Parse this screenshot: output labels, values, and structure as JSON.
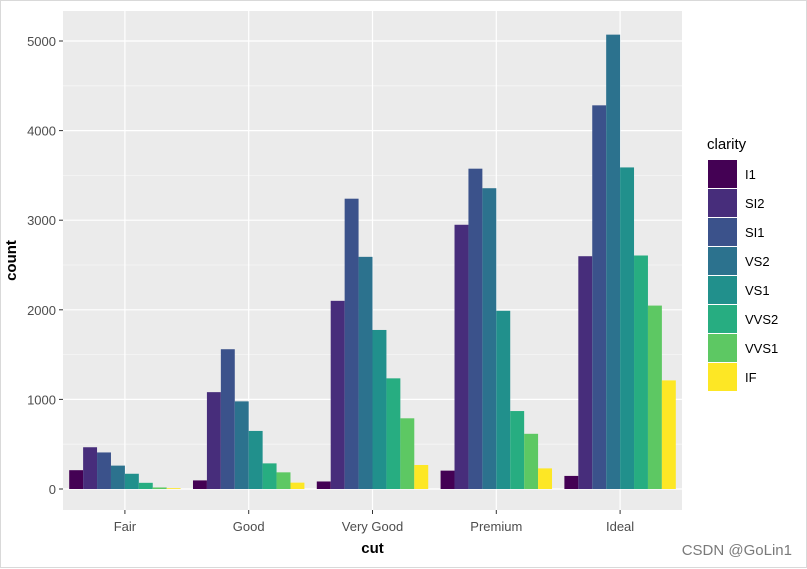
{
  "chart_data": {
    "type": "bar",
    "title": "",
    "xlabel": "cut",
    "ylabel": "count",
    "categories": [
      "Fair",
      "Good",
      "Very Good",
      "Premium",
      "Ideal"
    ],
    "ylim": [
      0,
      5100
    ],
    "yticks": [
      0,
      1000,
      2000,
      3000,
      4000,
      5000
    ],
    "grid": true,
    "legend": {
      "title": "clarity",
      "placement": "right"
    },
    "series": [
      {
        "name": "I1",
        "color": "#440154",
        "values": [
          210,
          96,
          84,
          205,
          146
        ]
      },
      {
        "name": "SI2",
        "color": "#472D7B",
        "values": [
          466,
          1081,
          2100,
          2949,
          2598
        ]
      },
      {
        "name": "SI1",
        "color": "#3B528B",
        "values": [
          408,
          1560,
          3240,
          3575,
          4282
        ]
      },
      {
        "name": "VS2",
        "color": "#2C728E",
        "values": [
          261,
          978,
          2591,
          3357,
          5071
        ]
      },
      {
        "name": "VS1",
        "color": "#21908C",
        "values": [
          170,
          648,
          1775,
          1989,
          3589
        ]
      },
      {
        "name": "VVS2",
        "color": "#27AD81",
        "values": [
          69,
          286,
          1235,
          870,
          2606
        ]
      },
      {
        "name": "VVS1",
        "color": "#5DC863",
        "values": [
          17,
          186,
          789,
          616,
          2047
        ]
      },
      {
        "name": "IF",
        "color": "#FDE725",
        "values": [
          9,
          71,
          268,
          230,
          1212
        ]
      }
    ]
  },
  "watermark": "CSDN @GoLin1"
}
